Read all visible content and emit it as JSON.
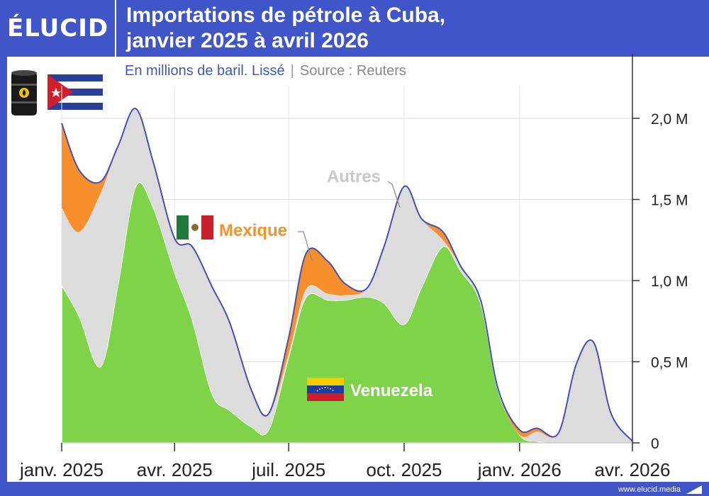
{
  "brand": {
    "logo_text": "ÉLUCID",
    "footer_url": "www.elucid.media"
  },
  "title_line1": "Importations de pétrole à Cuba,",
  "title_line2": "janvier 2025 à avril 2026",
  "subtitle": "En millions de baril. Lissé",
  "source": "Source : Reuters",
  "colors": {
    "venezuela": "#7ed348",
    "autres": "#dcdcdc",
    "mexique": "#f7902c",
    "total_line": "#4450b8",
    "brand": "#3f55c8"
  },
  "chart_data": {
    "type": "area",
    "stacked": true,
    "x": [
      "2025-01-01",
      "2025-01-15",
      "2025-02-01",
      "2025-02-15",
      "2025-03-01",
      "2025-03-15",
      "2025-04-01",
      "2025-04-15",
      "2025-05-01",
      "2025-05-15",
      "2025-06-01",
      "2025-06-15",
      "2025-07-01",
      "2025-07-15",
      "2025-08-01",
      "2025-08-15",
      "2025-09-01",
      "2025-09-15",
      "2025-10-01",
      "2025-10-15",
      "2025-11-01",
      "2025-11-15",
      "2025-12-01",
      "2025-12-15",
      "2026-01-01",
      "2026-01-15",
      "2026-02-01",
      "2026-02-15",
      "2026-03-01",
      "2026-03-15",
      "2026-04-01"
    ],
    "series": [
      {
        "name": "Venuezela",
        "values": [
          0.97,
          0.78,
          0.47,
          0.98,
          1.58,
          1.45,
          1.05,
          0.76,
          0.3,
          0.2,
          0.1,
          0.08,
          0.53,
          0.9,
          0.88,
          0.88,
          0.9,
          0.86,
          0.73,
          0.96,
          1.21,
          1.06,
          0.86,
          0.32,
          0.05,
          0.01,
          0,
          0,
          0,
          0,
          0
        ]
      },
      {
        "name": "Autres",
        "values": [
          0.48,
          0.52,
          1.07,
          0.85,
          0.48,
          0.28,
          0.21,
          0.45,
          0.66,
          0.54,
          0.23,
          0.1,
          0.02,
          0.05,
          0.04,
          0.03,
          0.05,
          0.35,
          0.85,
          0.42,
          0.04,
          0.03,
          0.02,
          0,
          0,
          0.06,
          0.06,
          0.48,
          0.62,
          0.18,
          0.01
        ]
      },
      {
        "name": "Mexique",
        "values": [
          0.52,
          0.38,
          0.07,
          0,
          0,
          0,
          0,
          0,
          0,
          0,
          0,
          0,
          0.1,
          0.22,
          0.2,
          0.07,
          0,
          0,
          0,
          0,
          0.05,
          0,
          0,
          0.01,
          0.03,
          0.02,
          0,
          0,
          0,
          0,
          0
        ]
      }
    ],
    "annotations": [
      "Autres",
      "Mexique",
      "Venuezela"
    ],
    "ylim": [
      0,
      2.2
    ],
    "y_ticks": [
      0,
      0.5,
      1.0,
      1.5,
      2.0
    ],
    "y_tick_labels": [
      "0",
      "0,5 M",
      "1,0 M",
      "1,5 M",
      "2,0 M"
    ],
    "x_tick_labels": [
      "janv. 2025",
      "avr. 2025",
      "juil. 2025",
      "oct. 2025",
      "janv. 2026",
      "avr. 2026"
    ],
    "grid": true
  },
  "icons": [
    "oil-barrel-icon",
    "cuba-flag-icon",
    "mexico-flag-icon",
    "venezuela-flag-icon"
  ]
}
